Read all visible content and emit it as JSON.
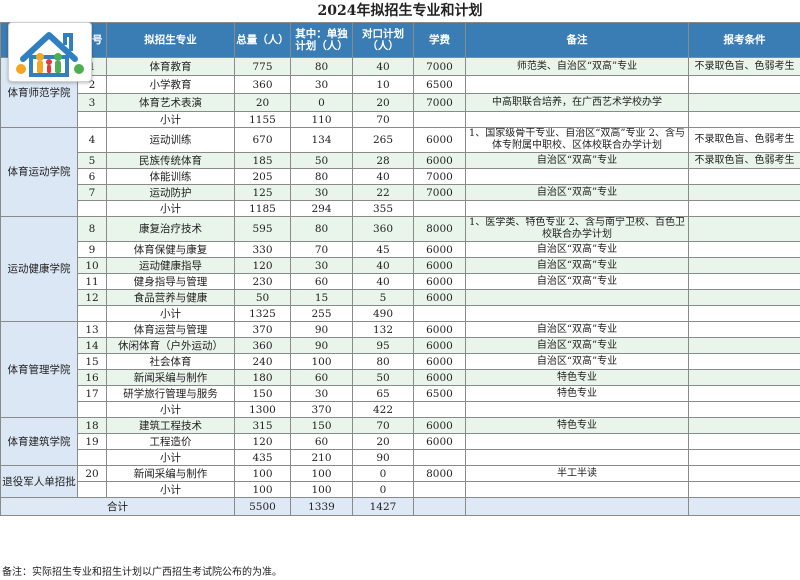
{
  "title": "2024年拟招生专业和计划",
  "headers": {
    "college": "",
    "no": "序号",
    "major": "拟招生专业",
    "total": "总量（人）",
    "single": "其中：单独计划（人）",
    "duikou": "对口计划（人）",
    "fee": "学费",
    "note": "备注",
    "req": "报考条件"
  },
  "groups": [
    {
      "college": "体育师范学院",
      "rows": [
        {
          "no": "1",
          "major": "体育教育",
          "total": "775",
          "single": "80",
          "duikou": "40",
          "fee": "7000",
          "note": "师范类、自治区“双高”专业",
          "req": "不录取色盲、色弱考生"
        },
        {
          "no": "2",
          "major": "小学教育",
          "total": "360",
          "single": "30",
          "duikou": "10",
          "fee": "6500",
          "note": "",
          "req": ""
        },
        {
          "no": "3",
          "major": "体育艺术表演",
          "total": "20",
          "single": "0",
          "duikou": "20",
          "fee": "7000",
          "note": "中高职联合培养，在广西艺术学校办学",
          "req": ""
        }
      ],
      "subtotal": {
        "label": "小计",
        "total": "1155",
        "single": "110",
        "duikou": "70"
      }
    },
    {
      "college": "体育运动学院",
      "rows": [
        {
          "no": "4",
          "major": "运动训练",
          "total": "670",
          "single": "134",
          "duikou": "265",
          "fee": "6000",
          "note": "1、国家级骨干专业、自治区“双高”专业 2、含与体专附属中职校、区体校联合办学计划",
          "req": "不录取色盲、色弱考生"
        },
        {
          "no": "5",
          "major": "民族传统体育",
          "total": "185",
          "single": "50",
          "duikou": "28",
          "fee": "6000",
          "note": "自治区“双高”专业",
          "req": "不录取色盲、色弱考生"
        },
        {
          "no": "6",
          "major": "体能训练",
          "total": "205",
          "single": "80",
          "duikou": "40",
          "fee": "7000",
          "note": "",
          "req": ""
        },
        {
          "no": "7",
          "major": "运动防护",
          "total": "125",
          "single": "30",
          "duikou": "22",
          "fee": "7000",
          "note": "自治区“双高”专业",
          "req": ""
        }
      ],
      "subtotal": {
        "label": "小计",
        "total": "1185",
        "single": "294",
        "duikou": "355"
      }
    },
    {
      "college": "运动健康学院",
      "rows": [
        {
          "no": "8",
          "major": "康复治疗技术",
          "total": "595",
          "single": "80",
          "duikou": "360",
          "fee": "8000",
          "note": "1、医学类、特色专业 2、含与南宁卫校、百色卫校联合办学计划",
          "req": ""
        },
        {
          "no": "9",
          "major": "体育保健与康复",
          "total": "330",
          "single": "70",
          "duikou": "45",
          "fee": "6000",
          "note": "自治区“双高”专业",
          "req": ""
        },
        {
          "no": "10",
          "major": "运动健康指导",
          "total": "120",
          "single": "30",
          "duikou": "40",
          "fee": "6000",
          "note": "自治区“双高”专业",
          "req": ""
        },
        {
          "no": "11",
          "major": "健身指导与管理",
          "total": "230",
          "single": "60",
          "duikou": "40",
          "fee": "6000",
          "note": "自治区“双高”专业",
          "req": ""
        },
        {
          "no": "12",
          "major": "食品营养与健康",
          "total": "50",
          "single": "15",
          "duikou": "5",
          "fee": "6000",
          "note": "",
          "req": ""
        }
      ],
      "subtotal": {
        "label": "小计",
        "total": "1325",
        "single": "255",
        "duikou": "490"
      }
    },
    {
      "college": "体育管理学院",
      "rows": [
        {
          "no": "13",
          "major": "体育运营与管理",
          "total": "370",
          "single": "90",
          "duikou": "132",
          "fee": "6000",
          "note": "自治区“双高”专业",
          "req": ""
        },
        {
          "no": "14",
          "major": "休闲体育（户外运动）",
          "total": "360",
          "single": "90",
          "duikou": "95",
          "fee": "6000",
          "note": "自治区“双高”专业",
          "req": ""
        },
        {
          "no": "15",
          "major": "社会体育",
          "total": "240",
          "single": "100",
          "duikou": "80",
          "fee": "6000",
          "note": "自治区“双高”专业",
          "req": ""
        },
        {
          "no": "16",
          "major": "新闻采编与制作",
          "total": "180",
          "single": "60",
          "duikou": "50",
          "fee": "6000",
          "note": "特色专业",
          "req": ""
        },
        {
          "no": "17",
          "major": "研学旅行管理与服务",
          "total": "150",
          "single": "30",
          "duikou": "65",
          "fee": "6500",
          "note": "特色专业",
          "req": ""
        }
      ],
      "subtotal": {
        "label": "小计",
        "total": "1300",
        "single": "370",
        "duikou": "422"
      }
    },
    {
      "college": "体育建筑学院",
      "rows": [
        {
          "no": "18",
          "major": "建筑工程技术",
          "total": "315",
          "single": "150",
          "duikou": "70",
          "fee": "6000",
          "note": "特色专业",
          "req": ""
        },
        {
          "no": "19",
          "major": "工程造价",
          "total": "120",
          "single": "60",
          "duikou": "20",
          "fee": "6000",
          "note": "",
          "req": ""
        }
      ],
      "subtotal": {
        "label": "小计",
        "total": "435",
        "single": "210",
        "duikou": "90"
      }
    },
    {
      "college": "退役军人单招批",
      "rows": [
        {
          "no": "20",
          "major": "新闻采编与制作",
          "total": "100",
          "single": "100",
          "duikou": "0",
          "fee": "8000",
          "note": "半工半读",
          "req": ""
        }
      ],
      "subtotal": {
        "label": "小计",
        "total": "100",
        "single": "100",
        "duikou": "0"
      }
    }
  ],
  "grand_total": {
    "label": "合计",
    "total": "5500",
    "single": "1339",
    "duikou": "1427"
  },
  "footnote": "备注：实际招生专业和招生计划以广西招生考试院公布的为准。",
  "logo": {
    "icon": "house-family-icon",
    "colors": [
      "#f5a623",
      "#2f7fc1",
      "#4caf50",
      "#e53935"
    ]
  }
}
